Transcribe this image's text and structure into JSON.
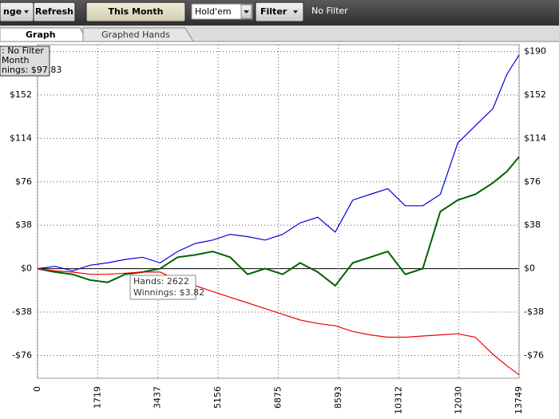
{
  "toolbar": {
    "buttons": [
      "nge",
      "Refresh",
      "This Month"
    ],
    "game_select": "Hold'em",
    "filter_button": "Filter",
    "filter_status": "No Filter"
  },
  "tabs": [
    "Graph",
    "Graphed Hands"
  ],
  "chart_data": {
    "type": "line",
    "x": [
      0,
      500,
      1000,
      1500,
      2000,
      2500,
      3000,
      3500,
      4000,
      4500,
      5000,
      5500,
      6000,
      6500,
      7000,
      7500,
      8000,
      8500,
      9000,
      9500,
      10000,
      10500,
      11000,
      11500,
      12000,
      12500,
      13000,
      13400,
      13749
    ],
    "series": [
      {
        "color": "#0000e0",
        "values": [
          0,
          2,
          -2,
          3,
          5,
          8,
          10,
          5,
          15,
          22,
          25,
          30,
          28,
          25,
          30,
          40,
          45,
          32,
          60,
          65,
          70,
          55,
          55,
          65,
          110,
          125,
          140,
          170,
          187
        ]
      },
      {
        "color": "#006000",
        "values": [
          0,
          -3,
          -5,
          -10,
          -12,
          -5,
          -3,
          0,
          10,
          12,
          15,
          10,
          -5,
          0,
          -5,
          5,
          -3,
          -15,
          5,
          10,
          15,
          -5,
          0,
          50,
          60,
          65,
          75,
          85,
          97.83
        ]
      },
      {
        "color": "#ee0000",
        "values": [
          0,
          -2,
          -3,
          -5,
          -5,
          -4,
          -3,
          -3,
          -10,
          -15,
          -20,
          -25,
          -30,
          -35,
          -40,
          -45,
          -48,
          -50,
          -55,
          -58,
          -60,
          -60,
          -59,
          -58,
          -57,
          -60,
          -75,
          -85,
          -93
        ]
      }
    ],
    "xlim": [
      0,
      13749
    ],
    "xticks": [
      0,
      1719,
      3437,
      5156,
      6875,
      8593,
      10312,
      12030,
      13749
    ],
    "ylim": [
      -96,
      196
    ],
    "yticks": [
      {
        "value": 190,
        "label": "$190"
      },
      {
        "value": 152,
        "label": "$152"
      },
      {
        "value": 114,
        "label": "$114"
      },
      {
        "value": 76,
        "label": "$76"
      },
      {
        "value": 38,
        "label": "$38"
      },
      {
        "value": 0,
        "label": "$0"
      },
      {
        "value": -38,
        "label": "-$38"
      },
      {
        "value": -76,
        "label": "-$76"
      }
    ],
    "grid": true,
    "annotations": {
      "summary": [
        ": No Filter",
        "Month",
        "nings: $97.83"
      ],
      "hover": [
        "Hands: 2622",
        "Winnings: $3.82"
      ]
    }
  }
}
